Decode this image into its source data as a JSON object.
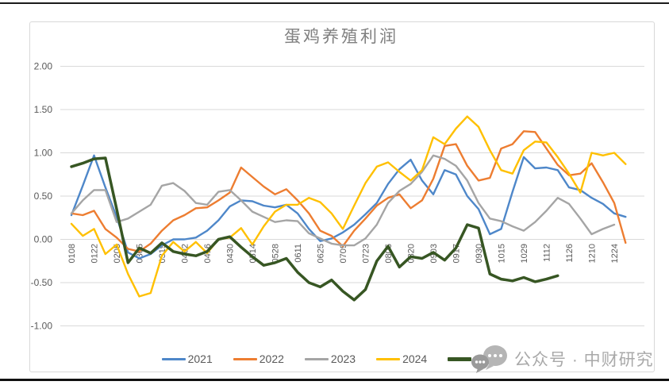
{
  "chart_data": {
    "type": "line",
    "title": "蛋鸡养殖利润",
    "xlabel": "",
    "ylabel": "",
    "ylim": [
      -1.0,
      2.0
    ],
    "grid": "horizontal",
    "legend_position": "bottom",
    "x_label_rotation": -90,
    "y_ticks": [
      "2.00",
      "1.50",
      "1.00",
      "0.50",
      "0.00",
      "-0.50",
      "-1.00"
    ],
    "y_tick_values": [
      2.0,
      1.5,
      1.0,
      0.5,
      0.0,
      -0.5,
      -1.0
    ],
    "x_tick_labels": [
      "0108",
      "0122",
      "0205",
      "0305",
      "0319",
      "0402",
      "0416",
      "0430",
      "0514",
      "0528",
      "0611",
      "0625",
      "0709",
      "0723",
      "0806",
      "0820",
      "0903",
      "0917",
      "0930",
      "1015",
      "1029",
      "1112",
      "1126",
      "1210",
      "1224"
    ],
    "points_per_tick": 2,
    "series": [
      {
        "name": "2021",
        "color": "#4e87c9",
        "width": 2.4,
        "values": [
          0.28,
          0.62,
          0.97,
          0.6,
          0.26,
          -0.15,
          -0.22,
          -0.17,
          -0.07,
          0.0,
          0.0,
          0.02,
          0.1,
          0.22,
          0.38,
          0.45,
          0.44,
          0.39,
          0.37,
          0.4,
          0.3,
          0.12,
          -0.02,
          0.01,
          0.08,
          0.17,
          0.29,
          0.42,
          0.64,
          0.81,
          0.92,
          0.68,
          0.52,
          0.8,
          0.75,
          0.5,
          0.35,
          0.06,
          0.12,
          0.55,
          0.95,
          0.82,
          0.83,
          0.8,
          0.6,
          0.57,
          0.48,
          0.41,
          0.3,
          0.26
        ]
      },
      {
        "name": "2022",
        "color": "#ed7d31",
        "width": 2.4,
        "values": [
          0.3,
          0.28,
          0.33,
          0.12,
          0.02,
          -0.11,
          -0.14,
          -0.05,
          0.1,
          0.22,
          0.28,
          0.36,
          0.37,
          0.45,
          0.54,
          0.83,
          0.72,
          0.61,
          0.52,
          0.58,
          0.45,
          0.3,
          0.1,
          0.04,
          -0.08,
          0.1,
          0.24,
          0.39,
          0.48,
          0.52,
          0.36,
          0.45,
          0.7,
          1.08,
          1.1,
          0.85,
          0.68,
          0.71,
          1.05,
          1.1,
          1.25,
          1.24,
          1.05,
          0.86,
          0.74,
          0.76,
          0.88,
          0.66,
          0.42,
          -0.04
        ]
      },
      {
        "name": "2023",
        "color": "#a5a5a5",
        "width": 2.4,
        "values": [
          0.3,
          0.45,
          0.57,
          0.57,
          0.2,
          0.24,
          0.32,
          0.4,
          0.62,
          0.65,
          0.56,
          0.42,
          0.4,
          0.55,
          0.57,
          0.45,
          0.32,
          0.26,
          0.2,
          0.22,
          0.21,
          0.07,
          0.01,
          -0.05,
          -0.07,
          -0.07,
          0.01,
          0.17,
          0.42,
          0.56,
          0.64,
          0.78,
          0.97,
          0.93,
          0.85,
          0.68,
          0.42,
          0.24,
          0.21,
          0.15,
          0.1,
          0.2,
          0.33,
          0.48,
          0.41,
          0.24,
          0.06,
          0.12,
          0.17
        ]
      },
      {
        "name": "2024",
        "color": "#ffc000",
        "width": 2.4,
        "values": [
          0.18,
          0.04,
          0.12,
          -0.17,
          -0.06,
          -0.4,
          -0.66,
          -0.62,
          -0.19,
          -0.03,
          -0.14,
          -0.03,
          -0.16,
          0.0,
          0.02,
          0.13,
          -0.06,
          0.15,
          0.32,
          0.4,
          0.4,
          0.48,
          0.43,
          0.3,
          0.12,
          0.39,
          0.65,
          0.84,
          0.89,
          0.78,
          0.68,
          0.8,
          1.18,
          1.1,
          1.28,
          1.42,
          1.3,
          1.03,
          0.8,
          0.76,
          1.03,
          1.13,
          1.12,
          0.95,
          0.76,
          0.54,
          1.0,
          0.97,
          1.0,
          0.87
        ]
      },
      {
        "name": "2025",
        "color": "#375623",
        "width": 3.5,
        "values": [
          0.84,
          0.88,
          0.93,
          0.94,
          0.35,
          -0.27,
          -0.1,
          -0.16,
          -0.04,
          -0.14,
          -0.17,
          -0.19,
          -0.14,
          0.0,
          0.03,
          -0.09,
          -0.2,
          -0.3,
          -0.27,
          -0.22,
          -0.38,
          -0.5,
          -0.55,
          -0.47,
          -0.6,
          -0.7,
          -0.58,
          -0.25,
          -0.08,
          -0.32,
          -0.2,
          -0.22,
          -0.15,
          -0.24,
          -0.1,
          0.17,
          0.13,
          -0.4,
          -0.46,
          -0.48,
          -0.44,
          -0.49,
          -0.46,
          -0.42
        ]
      }
    ]
  },
  "watermark": {
    "icon": "wechat-chat-bubbles-icon",
    "text": "公众号 · 中财研究"
  }
}
